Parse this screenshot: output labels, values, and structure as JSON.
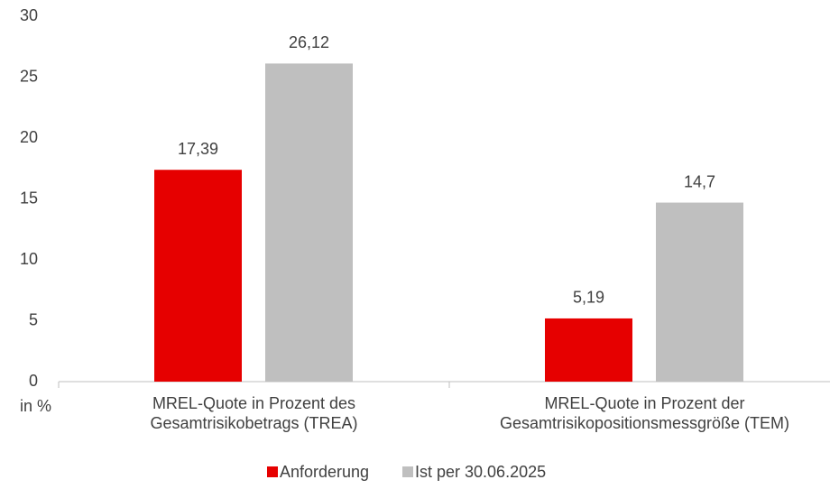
{
  "chart_data": {
    "type": "bar",
    "categories": [
      "MREL-Quote in Prozent des Gesamtrisikobetrags (TREA)",
      "MREL-Quote in Prozent der Gesamtrisikopositionsmessgröße (TEM)"
    ],
    "series": [
      {
        "name": "Anforderung",
        "color": "#e60000",
        "values": [
          17.39,
          5.19
        ],
        "value_labels": [
          "17,39",
          "5,19"
        ]
      },
      {
        "name": "Ist per 30.06.2025",
        "color": "#bfbfbf",
        "values": [
          26.12,
          14.7
        ],
        "value_labels": [
          "26,12",
          "14,7"
        ]
      }
    ],
    "ylabel": "in %",
    "ylim": [
      0,
      30
    ],
    "yticks": [
      0,
      5,
      10,
      15,
      20,
      25,
      30
    ],
    "grid": false,
    "legend": "bottom"
  }
}
